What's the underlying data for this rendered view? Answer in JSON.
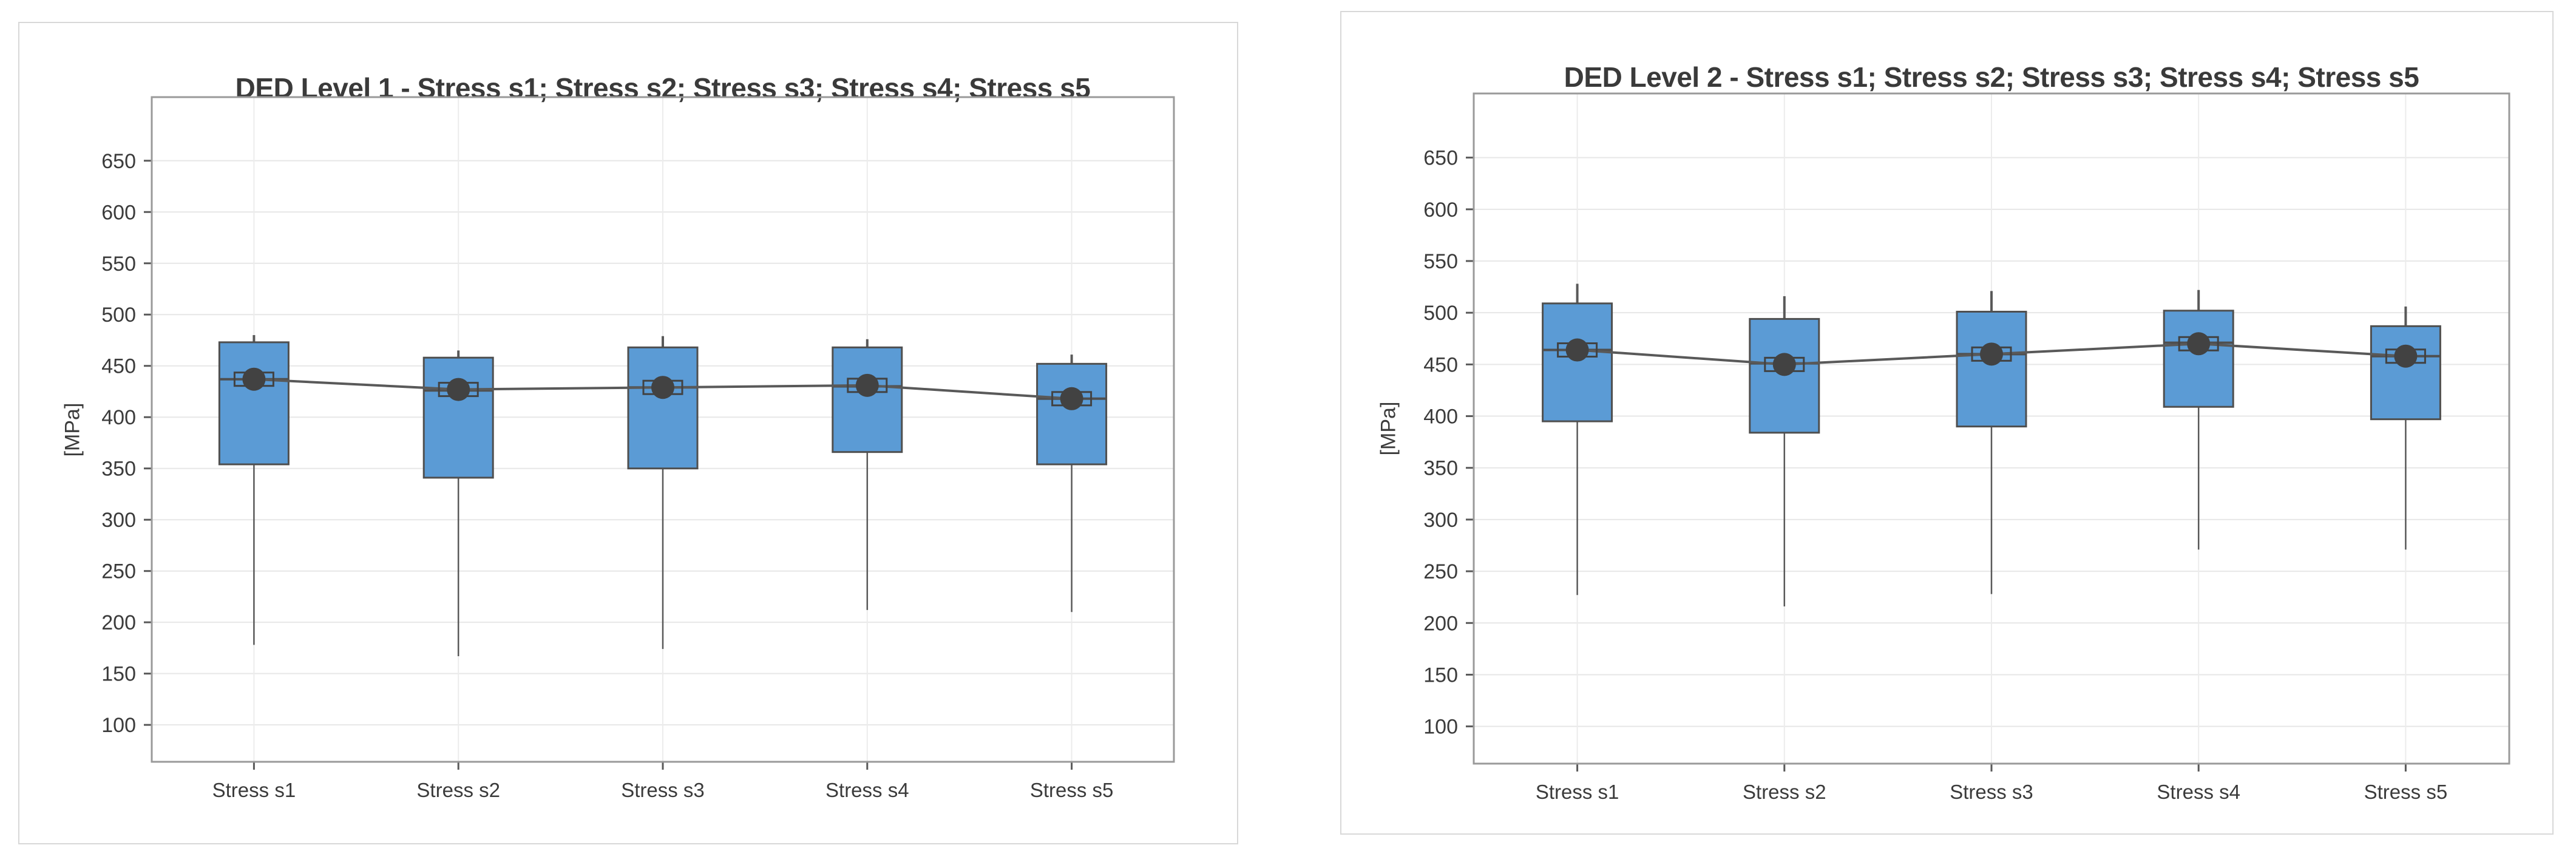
{
  "page": {
    "background_color": "#ffffff",
    "card_border_color": "#d8d8d8"
  },
  "chart_data": [
    {
      "type": "box",
      "title": "DED Level 1 - Stress s1; Stress s2; Stress s3; Stress s4; Stress s5",
      "xlabel": "",
      "ylabel": "[MPa]",
      "categories": [
        "Stress s1",
        "Stress s2",
        "Stress s3",
        "Stress s4",
        "Stress s5"
      ],
      "yticks": [
        100,
        150,
        200,
        250,
        300,
        350,
        400,
        450,
        500,
        550,
        600,
        650
      ],
      "ylim": [
        64,
        712
      ],
      "grid": {
        "horizontal": true,
        "vertical": true
      },
      "legend": "none",
      "connect_means": true,
      "series_stats": [
        {
          "category": "Stress s1",
          "whisker_low": 178,
          "q1": 354,
          "median": 437,
          "mean": 437,
          "q3": 473,
          "whisker_high": 480
        },
        {
          "category": "Stress s2",
          "whisker_low": 167,
          "q1": 341,
          "median": 426,
          "mean": 427,
          "q3": 458,
          "whisker_high": 465
        },
        {
          "category": "Stress s3",
          "whisker_low": 174,
          "q1": 350,
          "median": 429,
          "mean": 429,
          "q3": 468,
          "whisker_high": 479
        },
        {
          "category": "Stress s4",
          "whisker_low": 212,
          "q1": 366,
          "median": 430,
          "mean": 431,
          "q3": 468,
          "whisker_high": 476
        },
        {
          "category": "Stress s5",
          "whisker_low": 210,
          "q1": 354,
          "median": 418,
          "mean": 418,
          "q3": 452,
          "whisker_high": 461
        }
      ],
      "colors": {
        "box_fill": "#5B9BD5",
        "box_border": "#4f4f4f",
        "whisker": "#595959",
        "median": "#4f4f4f",
        "mean_marker": "#424242",
        "mean_line": "#595959",
        "grid_h": "#e7e7e7",
        "grid_v": "#ececec",
        "plot_border": "#9a9a9a",
        "tick": "#595959",
        "text": "#3b3b3b"
      }
    },
    {
      "type": "box",
      "title": "DED Level 2 - Stress s1; Stress s2; Stress s3; Stress s4; Stress s5",
      "xlabel": "",
      "ylabel": "[MPa]",
      "categories": [
        "Stress s1",
        "Stress s2",
        "Stress s3",
        "Stress s4",
        "Stress s5"
      ],
      "yticks": [
        100,
        150,
        200,
        250,
        300,
        350,
        400,
        450,
        500,
        550,
        600,
        650
      ],
      "ylim": [
        64,
        712
      ],
      "grid": {
        "horizontal": true,
        "vertical": true
      },
      "legend": "none",
      "connect_means": true,
      "series_stats": [
        {
          "category": "Stress s1",
          "whisker_low": 227,
          "q1": 395,
          "median": 464,
          "mean": 464,
          "q3": 509,
          "whisker_high": 528
        },
        {
          "category": "Stress s2",
          "whisker_low": 216,
          "q1": 384,
          "median": 451,
          "mean": 450,
          "q3": 494,
          "whisker_high": 516
        },
        {
          "category": "Stress s3",
          "whisker_low": 228,
          "q1": 390,
          "median": 460,
          "mean": 460,
          "q3": 501,
          "whisker_high": 521
        },
        {
          "category": "Stress s4",
          "whisker_low": 271,
          "q1": 409,
          "median": 471,
          "mean": 470,
          "q3": 502,
          "whisker_high": 522
        },
        {
          "category": "Stress s5",
          "whisker_low": 271,
          "q1": 397,
          "median": 458,
          "mean": 458,
          "q3": 487,
          "whisker_high": 506
        }
      ],
      "colors": {
        "box_fill": "#5B9BD5",
        "box_border": "#4f4f4f",
        "whisker": "#595959",
        "median": "#4f4f4f",
        "mean_marker": "#424242",
        "mean_line": "#595959",
        "grid_h": "#e7e7e7",
        "grid_v": "#ececec",
        "plot_border": "#9a9a9a",
        "tick": "#595959",
        "text": "#3b3b3b"
      }
    }
  ]
}
